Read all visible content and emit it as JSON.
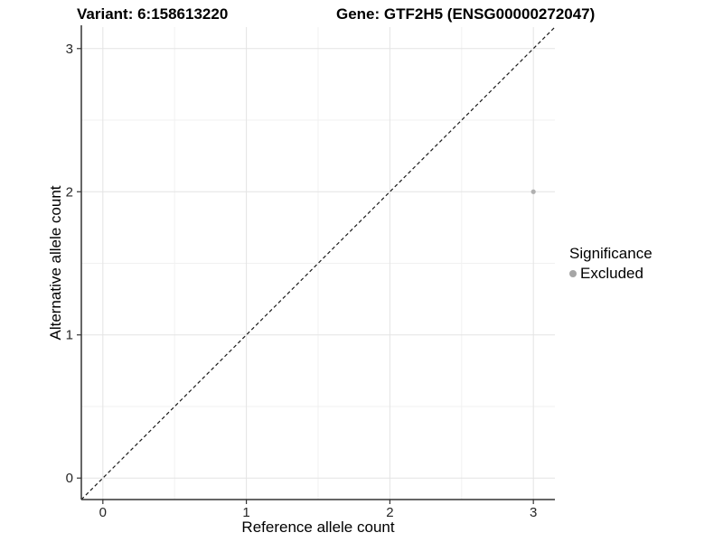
{
  "chart_data": {
    "type": "scatter",
    "titles": {
      "left": "Variant: 6:158613220",
      "right": "Gene: GTF2H5 (ENSG00000272047)"
    },
    "xlabel": "Reference allele count",
    "ylabel": "Alternative allele count",
    "xlim": [
      -0.15,
      3.15
    ],
    "ylim": [
      -0.15,
      3.15
    ],
    "x_ticks": [
      0,
      1,
      2,
      3
    ],
    "y_ticks": [
      0,
      1,
      2,
      3
    ],
    "x_minor_ticks": [
      0.5,
      1.5,
      2.5
    ],
    "y_minor_ticks": [
      0.5,
      1.5,
      2.5
    ],
    "grid": "major+minor",
    "reference_line": {
      "equation": "y = x",
      "style": "dashed",
      "color": "#1a1a1a"
    },
    "series": [
      {
        "name": "Excluded",
        "color": "#b0b0b0",
        "points": [
          {
            "x": 3,
            "y": 2
          }
        ]
      }
    ],
    "legend": {
      "title": "Significance",
      "position": "right",
      "entries": [
        {
          "label": "Excluded",
          "color": "#a6a6a6"
        }
      ]
    }
  }
}
